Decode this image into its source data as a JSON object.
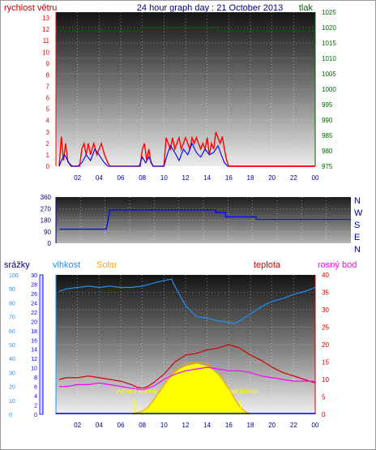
{
  "header": {
    "title": "24 hour graph day : 21 October 2013",
    "left_label": "rychlost větru",
    "right_label": "tlak"
  },
  "bottom_labels": {
    "rain": "srážky",
    "humidity": "vlhkost",
    "solar": "Solar",
    "temp": "teplota",
    "dew": "rosný bod",
    "sunrise": "východ slunce",
    "sunset": "západ slunce"
  },
  "colors": {
    "title": "#00008b",
    "wind": "#ff0000",
    "pressure": "#006400",
    "direction": "#0000ff",
    "humidity": "#1e90ff",
    "solar": "#ffa500",
    "solar_fill": "#ffff00",
    "temp": "#cc0000",
    "dew": "#ff00ff",
    "rain": "#0000ff"
  },
  "chart_data": [
    {
      "type": "line",
      "name": "wind-pressure",
      "x_ticks": [
        "02",
        "04",
        "06",
        "08",
        "10",
        "12",
        "14",
        "16",
        "18",
        "20",
        "22",
        "00"
      ],
      "y_left_ticks": [
        "0",
        "1",
        "2",
        "3",
        "4",
        "5",
        "6",
        "7",
        "8",
        "9",
        "10",
        "11",
        "12",
        "13"
      ],
      "y_right_ticks": [
        "975",
        "980",
        "985",
        "990",
        "995",
        "1000",
        "1005",
        "1010",
        "1015",
        "1020",
        "1025"
      ],
      "ylim_left": [
        0,
        13.5
      ],
      "ylim_right": [
        975,
        1025
      ],
      "pressure": {
        "x": [
          0.3,
          8.0,
          8.0,
          15.0,
          15.0,
          24.0
        ],
        "y": [
          1019,
          1019,
          1020,
          1020,
          1019,
          1019
        ]
      },
      "wind_avg": {
        "x": [
          0.3,
          0.5,
          0.8,
          1.2,
          1.5,
          1.8,
          2.0,
          2.4,
          2.8,
          3.2,
          3.6,
          4.0,
          4.4,
          4.8,
          5.2,
          5.6,
          6.0,
          6.5,
          7.0,
          7.4,
          7.7,
          8.0,
          8.3,
          8.6,
          9.0,
          9.5,
          10.0,
          10.3,
          10.6,
          11.0,
          11.4,
          11.8,
          12.2,
          12.6,
          13.0,
          13.4,
          13.8,
          14.2,
          14.6,
          15.0,
          15.3,
          15.6,
          15.9,
          16.5,
          20.0,
          24.0
        ],
        "y": [
          0,
          0.5,
          1.0,
          0.3,
          0,
          0,
          0,
          0.3,
          1.0,
          0.5,
          1.5,
          1.0,
          0.4,
          0,
          0,
          0,
          0,
          0,
          0,
          0,
          0,
          0.8,
          0.3,
          0.8,
          0,
          0,
          0,
          1.0,
          1.8,
          1.2,
          0.5,
          1.5,
          1.0,
          2.0,
          1.2,
          0.8,
          1.5,
          1.0,
          1.2,
          1.8,
          1.0,
          0.3,
          0,
          0,
          0,
          0
        ]
      },
      "wind_gust": {
        "x": [
          0.3,
          0.5,
          0.7,
          0.9,
          1.1,
          1.4,
          1.8,
          2.2,
          2.4,
          2.6,
          2.8,
          3.0,
          3.2,
          3.5,
          3.8,
          4.0,
          4.2,
          4.5,
          4.8,
          5.0,
          5.5,
          6.0,
          6.5,
          7.0,
          7.5,
          7.8,
          8.0,
          8.2,
          8.4,
          8.6,
          8.8,
          9.0,
          9.5,
          10.0,
          10.2,
          10.4,
          10.6,
          10.8,
          11.0,
          11.2,
          11.4,
          11.6,
          11.8,
          12.0,
          12.2,
          12.4,
          12.6,
          12.8,
          13.0,
          13.2,
          13.4,
          13.6,
          13.8,
          14.0,
          14.2,
          14.4,
          14.6,
          14.8,
          15.0,
          15.2,
          15.4,
          15.6,
          15.8,
          16.0,
          17.0,
          20.0,
          24.0
        ],
        "y": [
          0,
          2.6,
          0.5,
          2.0,
          0.4,
          0,
          0,
          0,
          1.5,
          2.0,
          1.0,
          2.0,
          1.0,
          2.0,
          1.0,
          1.5,
          2.0,
          1.0,
          0.3,
          0,
          0,
          0,
          0,
          0,
          0,
          0,
          1.5,
          2.0,
          0.5,
          1.5,
          0.3,
          0,
          0,
          0,
          2.5,
          2.0,
          1.5,
          2.5,
          1.5,
          2.0,
          2.5,
          1.5,
          2.0,
          2.5,
          2.0,
          1.5,
          2.5,
          2.0,
          2.5,
          2.0,
          1.5,
          2.0,
          1.5,
          2.5,
          1.0,
          2.0,
          1.5,
          3.0,
          2.5,
          2.0,
          2.6,
          1.5,
          0.5,
          0,
          0,
          0,
          0
        ]
      }
    },
    {
      "type": "line",
      "name": "wind-direction",
      "y_ticks": [
        "0",
        "90",
        "180",
        "270",
        "360"
      ],
      "compass": [
        "N",
        "W",
        "S",
        "E",
        "N"
      ],
      "ylim": [
        0,
        360
      ],
      "x": [
        0.3,
        4.1,
        4.4,
        13.0,
        13.0,
        13.8,
        13.8,
        16.3,
        16.3,
        24.0
      ],
      "y": [
        110,
        110,
        260,
        260,
        240,
        240,
        205,
        205,
        185,
        185
      ]
    },
    {
      "type": "line",
      "name": "temp-humidity-solar",
      "x_ticks": [
        "02",
        "04",
        "06",
        "08",
        "10",
        "12",
        "14",
        "16",
        "18",
        "20",
        "22",
        "00"
      ],
      "y_rain_ticks": [
        "0",
        "2",
        "4",
        "6",
        "8",
        "10",
        "12",
        "14",
        "16",
        "18",
        "20",
        "22",
        "24",
        "26",
        "28",
        "30"
      ],
      "y_hum_ticks": [
        "0",
        "10",
        "20",
        "30",
        "40",
        "50",
        "60",
        "70",
        "80",
        "90",
        "100"
      ],
      "y_temp_ticks": [
        "0",
        "5",
        "10",
        "15",
        "20",
        "25",
        "30",
        "35",
        "40"
      ],
      "ylim_temp": [
        0,
        40
      ],
      "ylim_hum": [
        0,
        100
      ],
      "temperature": {
        "x": [
          0.3,
          1,
          2,
          3,
          4,
          5,
          6,
          7,
          7.5,
          8,
          8.5,
          9,
          10,
          11,
          12,
          13,
          14,
          15,
          16,
          17,
          18,
          19,
          20,
          21,
          22,
          23,
          24
        ],
        "y": [
          10.0,
          10.5,
          10.5,
          11.0,
          10.5,
          10.0,
          9.5,
          8.5,
          7.8,
          7.5,
          8.0,
          9.0,
          11.5,
          15.0,
          17.0,
          17.5,
          18.5,
          19.0,
          20.0,
          19.0,
          17.0,
          15.5,
          13.5,
          12.0,
          11.0,
          10.0,
          9.0
        ]
      },
      "dew_point": {
        "x": [
          0.3,
          1,
          2,
          3,
          4,
          5,
          6,
          7,
          8,
          9,
          10,
          11,
          12,
          13,
          14,
          15,
          16,
          17,
          18,
          19,
          20,
          21,
          22,
          23,
          24
        ],
        "y": [
          8.0,
          8.0,
          8.5,
          8.5,
          9.0,
          8.5,
          8.0,
          7.5,
          7.0,
          8.0,
          10.0,
          11.5,
          12.5,
          13.0,
          13.5,
          13.0,
          12.5,
          12.5,
          12.0,
          11.0,
          10.5,
          10.0,
          9.5,
          9.5,
          9.5
        ]
      },
      "humidity": {
        "x": [
          0.3,
          1,
          2,
          3,
          4,
          5,
          6,
          7,
          8,
          9,
          10,
          10.7,
          11,
          12,
          13,
          14,
          15,
          16,
          16.5,
          17,
          18,
          19,
          20,
          21,
          22,
          23,
          24
        ],
        "y": [
          88,
          90,
          91,
          92,
          91,
          92,
          91,
          91,
          92,
          94,
          96,
          97,
          92,
          78,
          70,
          69,
          67,
          66,
          65,
          67,
          72,
          77,
          81,
          83,
          86,
          88,
          91
        ]
      },
      "solar": {
        "x": [
          7.0,
          7.5,
          8.0,
          8.5,
          9.0,
          9.5,
          10.0,
          10.5,
          11.0,
          11.5,
          12.0,
          12.5,
          13.0,
          13.5,
          14.0,
          14.5,
          15.0,
          15.5,
          16.0,
          16.5,
          17.0,
          17.5,
          18.0
        ],
        "y": [
          0,
          0.02,
          0.05,
          0.12,
          0.25,
          0.4,
          0.55,
          0.7,
          0.82,
          0.9,
          0.95,
          0.98,
          1.0,
          0.98,
          0.95,
          0.88,
          0.78,
          0.64,
          0.48,
          0.3,
          0.14,
          0.04,
          0
        ]
      },
      "sunrise_hour": 7.3,
      "sunset_hour": 17.1
    }
  ]
}
